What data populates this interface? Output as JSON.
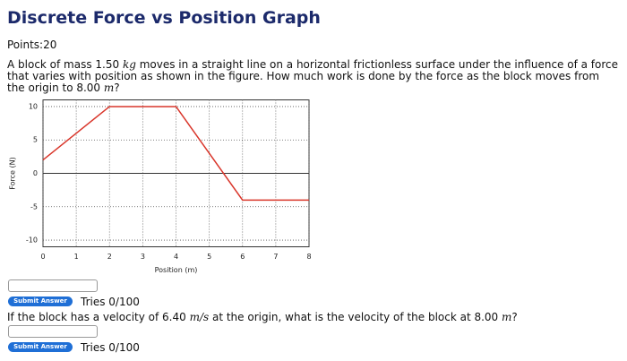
{
  "header": {
    "title": "Discrete Force vs Position Graph",
    "points": "Points:20"
  },
  "questions": [
    {
      "parts": [
        "A block of mass 1.50 ",
        "kg",
        " moves in a straight line on a horizontal frictionless surface under the influence of a force that varies with position as shown in the figure. How much work is done by the force as the block moves from the origin to 8.00 ",
        "m",
        "?"
      ]
    },
    {
      "parts": [
        "If the block has a velocity of 6.40 ",
        "m/s",
        " at the origin, what is the velocity of the block at 8.00 ",
        "m",
        "?"
      ]
    }
  ],
  "answers": [
    {
      "button": "Submit Answer",
      "tries": "Tries 0/100"
    },
    {
      "button": "Submit Answer",
      "tries": "Tries 0/100"
    }
  ],
  "chart_data": {
    "type": "line",
    "xlabel": "Position (m)",
    "ylabel": "Force (N)",
    "x": [
      0,
      2,
      4,
      6,
      8
    ],
    "series": [
      {
        "color": "#d9362b",
        "values": [
          2,
          10,
          10,
          -4,
          -4
        ]
      }
    ],
    "xlim": [
      0,
      8
    ],
    "ylim": [
      -11,
      11
    ],
    "xticks": [
      0,
      1,
      2,
      3,
      4,
      5,
      6,
      7,
      8
    ],
    "yticks": [
      10,
      5,
      0,
      -5,
      -10
    ],
    "grid": true
  }
}
